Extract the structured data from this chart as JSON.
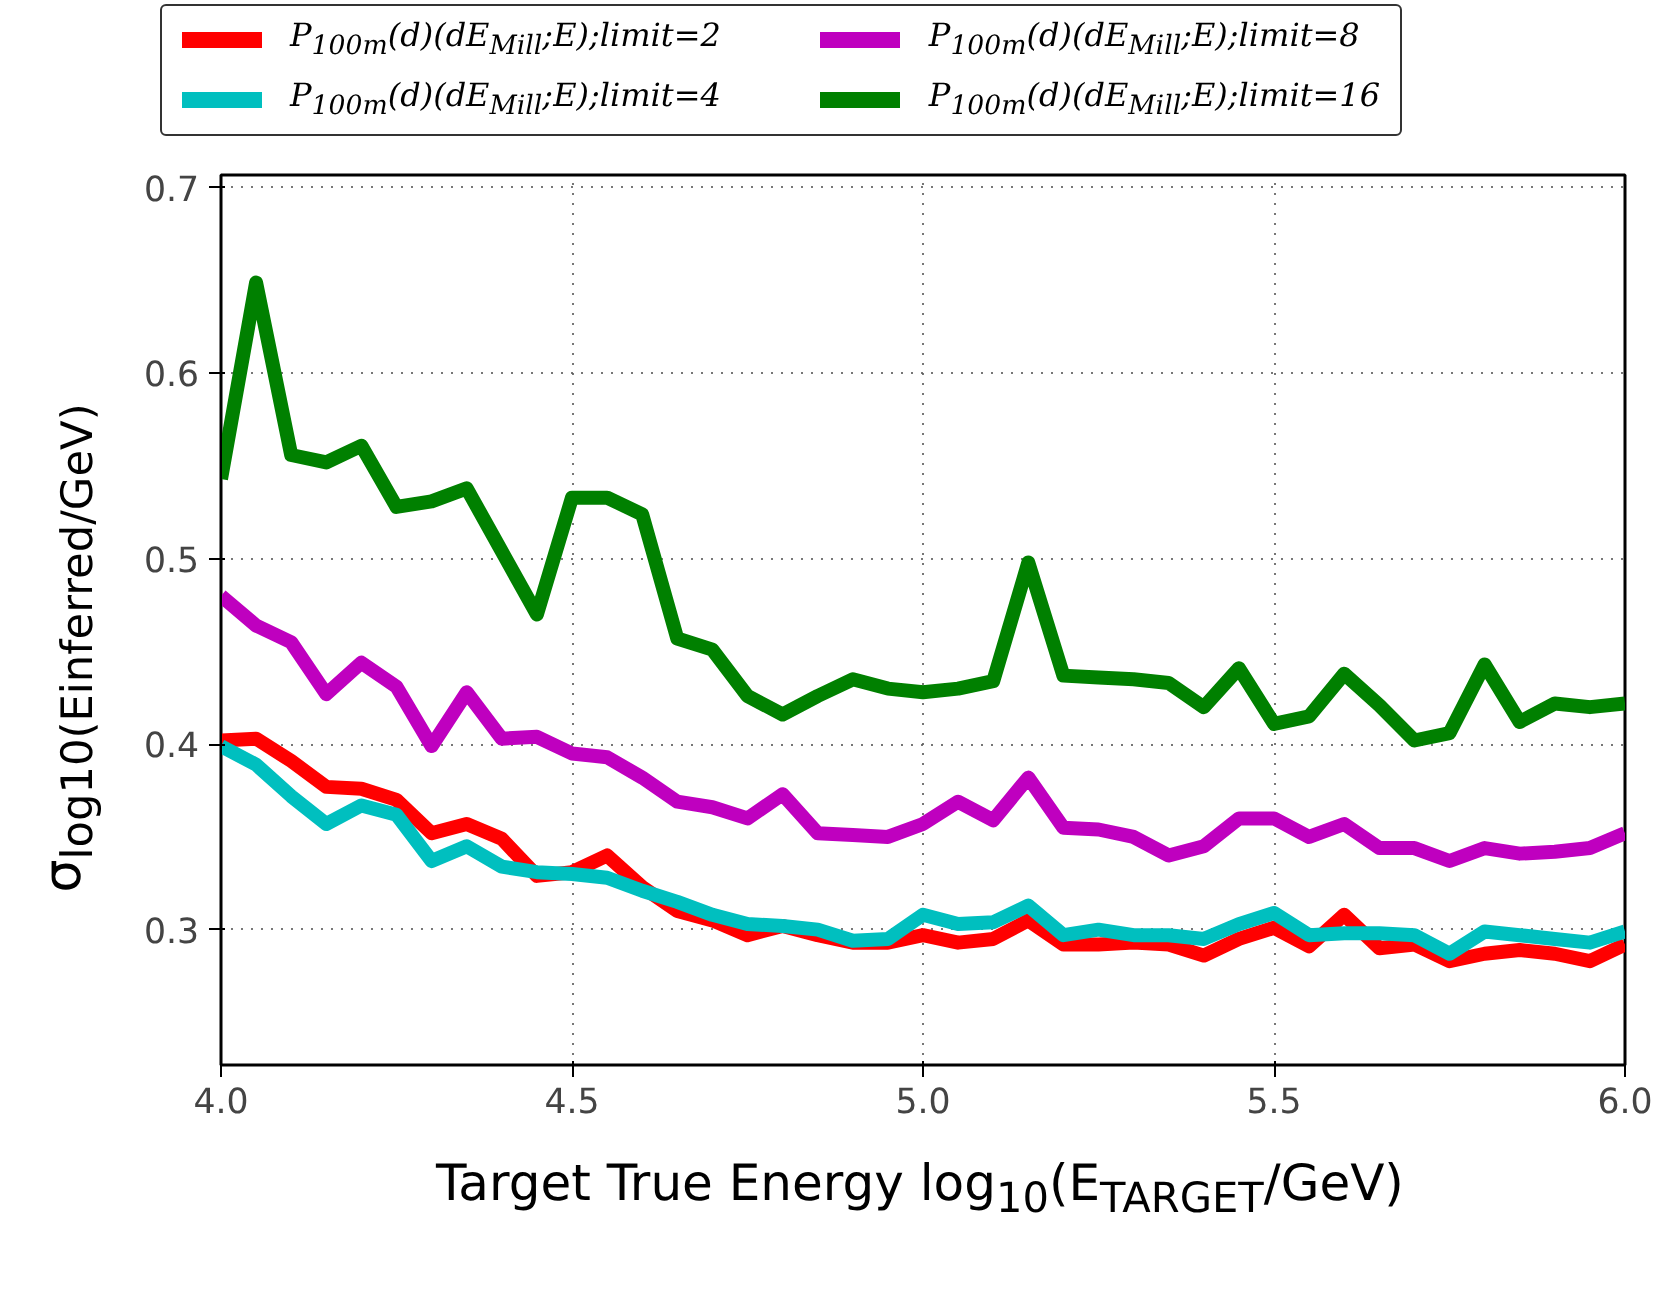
{
  "chart_data": {
    "type": "line",
    "xlabel": "Target True Energy log$_{10}$(E$_{TARGET}$/GeV)",
    "ylabel": "σ$_{log10(Einferred/GeV)}$",
    "x": [
      4.0,
      4.05,
      4.1,
      4.15,
      4.2,
      4.25,
      4.3,
      4.35,
      4.4,
      4.45,
      4.5,
      4.55,
      4.6,
      4.65,
      4.7,
      4.75,
      4.8,
      4.85,
      4.9,
      4.95,
      5.0,
      5.05,
      5.1,
      5.15,
      5.2,
      5.25,
      5.3,
      5.35,
      5.4,
      5.45,
      5.5,
      5.55,
      5.6,
      5.65,
      5.7,
      5.75,
      5.8,
      5.85,
      5.9,
      5.95,
      6.0
    ],
    "series": [
      {
        "name": "P$_{100m}$(d)(dE$_{Mill}$;E);limit=2",
        "color": "#ff0000",
        "values": [
          0.402,
          0.403,
          0.391,
          0.377,
          0.376,
          0.37,
          0.352,
          0.357,
          0.349,
          0.329,
          0.331,
          0.34,
          0.323,
          0.31,
          0.305,
          0.297,
          0.302,
          0.297,
          0.293,
          0.293,
          0.297,
          0.293,
          0.295,
          0.305,
          0.292,
          0.292,
          0.293,
          0.292,
          0.286,
          0.295,
          0.301,
          0.291,
          0.308,
          0.29,
          0.292,
          0.283,
          0.287,
          0.289,
          0.287,
          0.283,
          0.292
        ]
      },
      {
        "name": "P$_{100m}$(d)(dE$_{Mill}$;E);limit=4",
        "color": "#00bfbf",
        "values": [
          0.399,
          0.389,
          0.372,
          0.357,
          0.367,
          0.362,
          0.337,
          0.345,
          0.334,
          0.331,
          0.33,
          0.328,
          0.321,
          0.315,
          0.308,
          0.303,
          0.302,
          0.3,
          0.294,
          0.295,
          0.308,
          0.303,
          0.304,
          0.313,
          0.297,
          0.3,
          0.297,
          0.297,
          0.295,
          0.303,
          0.309,
          0.297,
          0.298,
          0.298,
          0.297,
          0.287,
          0.299,
          0.297,
          0.295,
          0.293,
          0.299
        ]
      },
      {
        "name": "P$_{100m}$(d)(dE$_{Mill}$;E);limit=8",
        "color": "#bf00bf",
        "values": [
          0.48,
          0.464,
          0.455,
          0.427,
          0.444,
          0.431,
          0.399,
          0.428,
          0.403,
          0.404,
          0.395,
          0.393,
          0.382,
          0.369,
          0.366,
          0.36,
          0.373,
          0.352,
          0.351,
          0.35,
          0.357,
          0.369,
          0.359,
          0.382,
          0.355,
          0.354,
          0.35,
          0.34,
          0.345,
          0.36,
          0.36,
          0.35,
          0.357,
          0.344,
          0.344,
          0.337,
          0.344,
          0.341,
          0.342,
          0.344,
          0.352
        ]
      },
      {
        "name": "P$_{100m}$(d)(dE$_{Mill}$;E);limit=16",
        "color": "#008000",
        "values": [
          0.543,
          0.649,
          0.556,
          0.552,
          0.561,
          0.528,
          0.531,
          0.538,
          0.504,
          0.47,
          0.533,
          0.533,
          0.524,
          0.457,
          0.451,
          0.426,
          0.416,
          0.426,
          0.435,
          0.43,
          0.428,
          0.43,
          0.434,
          0.498,
          0.437,
          0.436,
          0.435,
          0.433,
          0.42,
          0.441,
          0.411,
          0.415,
          0.438,
          0.421,
          0.402,
          0.406,
          0.443,
          0.412,
          0.422,
          0.42,
          0.422
        ]
      }
    ],
    "xlim": [
      4.0,
      6.0
    ],
    "xticks": [
      {
        "value": 4.0,
        "label": "4.0"
      },
      {
        "value": 4.5,
        "label": "4.5"
      },
      {
        "value": 5.0,
        "label": "5.0"
      },
      {
        "value": 5.5,
        "label": "5.5"
      },
      {
        "value": 6.0,
        "label": "6.0"
      }
    ],
    "ylim": [
      0.227,
      0.707
    ],
    "yticks": [
      0.3,
      0.4,
      0.5,
      0.6,
      0.7
    ],
    "grid": true,
    "legend": "top",
    "line_style": "solid",
    "marker": "none"
  }
}
